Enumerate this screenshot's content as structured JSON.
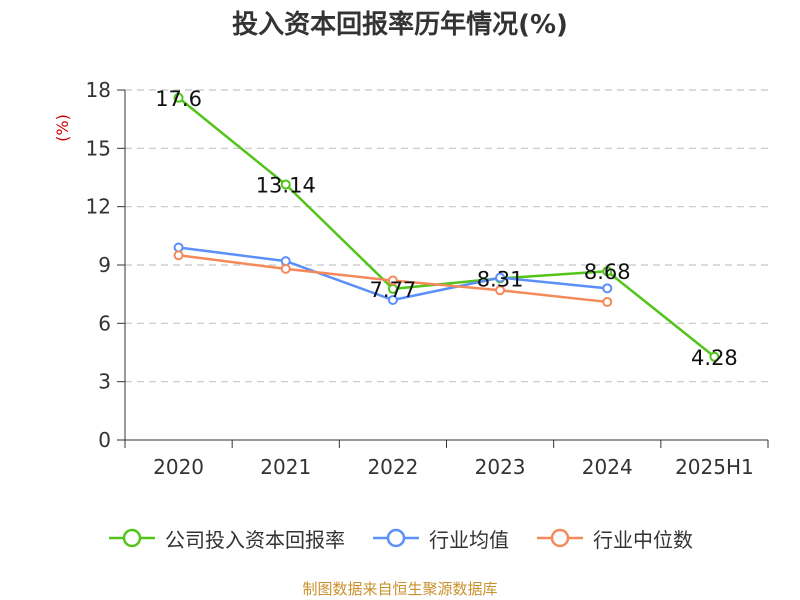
{
  "chart_data": {
    "type": "line",
    "title": "投入资本回报率历年情况(%)",
    "ylabel": "(%)",
    "xlabel": "",
    "categories": [
      "2020",
      "2021",
      "2022",
      "2023",
      "2024",
      "2025H1"
    ],
    "ylim": [
      0,
      18
    ],
    "yticks": [
      0,
      3,
      6,
      9,
      12,
      15,
      18
    ],
    "grid": true,
    "legend_position": "bottom",
    "series": [
      {
        "name": "公司投入资本回报率",
        "color": "#52c41a",
        "values": [
          17.6,
          13.14,
          7.77,
          8.31,
          8.68,
          4.28
        ],
        "labels": [
          "17.6",
          "13.14",
          "7.77",
          "8.31",
          "8.68",
          "4.28"
        ]
      },
      {
        "name": "行业均值",
        "color": "#5b8ff9",
        "values": [
          9.9,
          9.2,
          7.2,
          8.35,
          7.8,
          null
        ]
      },
      {
        "name": "行业中位数",
        "color": "#f5895a",
        "values": [
          9.5,
          8.8,
          8.2,
          7.7,
          7.1,
          null
        ]
      }
    ]
  },
  "source": "制图数据来自恒生聚源数据库"
}
